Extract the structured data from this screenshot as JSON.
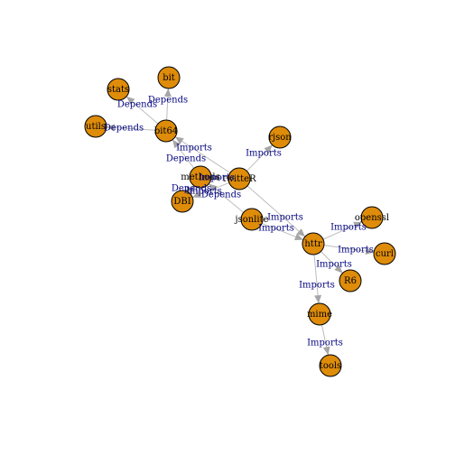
{
  "colors": {
    "node_fill": "#de8c0a",
    "node_stroke": "#000000",
    "edge": "#bdbdbd",
    "arrow": "#a6a6a6",
    "edge_label": "#00007f"
  },
  "nodes": [
    {
      "id": "bit",
      "label": "bit"
    },
    {
      "id": "stats",
      "label": "stats"
    },
    {
      "id": "utils",
      "label": "utils"
    },
    {
      "id": "bit64",
      "label": "bit64"
    },
    {
      "id": "rjson",
      "label": "rjson"
    },
    {
      "id": "methods",
      "label": "methods"
    },
    {
      "id": "twitteR",
      "label": "twitteR"
    },
    {
      "id": "DBI",
      "label": "DBI"
    },
    {
      "id": "jsonlite",
      "label": "jsonlite"
    },
    {
      "id": "openssl",
      "label": "openssl"
    },
    {
      "id": "httr",
      "label": "httr"
    },
    {
      "id": "curl",
      "label": "curl"
    },
    {
      "id": "R6",
      "label": "R6"
    },
    {
      "id": "mime",
      "label": "mime"
    },
    {
      "id": "tools",
      "label": "tools"
    }
  ],
  "edges": [
    {
      "from": "bit64",
      "to": "bit",
      "label": "Depends"
    },
    {
      "from": "bit64",
      "to": "stats",
      "label": "Depends"
    },
    {
      "from": "bit64",
      "to": "utils",
      "label": "Depends"
    },
    {
      "from": "twitteR",
      "to": "bit64",
      "label": "Imports"
    },
    {
      "from": "methods",
      "to": "bit64",
      "label": "Depends"
    },
    {
      "from": "twitteR",
      "to": "rjson",
      "label": "Imports"
    },
    {
      "from": "twitteR",
      "to": "methods",
      "label": "Imports"
    },
    {
      "from": "DBI",
      "to": "methods",
      "label": "Depends"
    },
    {
      "from": "twitteR",
      "to": "DBI",
      "label": "Imports"
    },
    {
      "from": "jsonlite",
      "to": "methods",
      "label": "Depends"
    },
    {
      "from": "twitteR",
      "to": "httr",
      "label": "Imports"
    },
    {
      "from": "jsonlite",
      "to": "httr",
      "label": "Imports"
    },
    {
      "from": "httr",
      "to": "openssl",
      "label": "Imports"
    },
    {
      "from": "httr",
      "to": "curl",
      "label": "Imports"
    },
    {
      "from": "httr",
      "to": "R6",
      "label": "Imports"
    },
    {
      "from": "httr",
      "to": "mime",
      "label": "Imports"
    },
    {
      "from": "mime",
      "to": "tools",
      "label": "Imports"
    }
  ]
}
